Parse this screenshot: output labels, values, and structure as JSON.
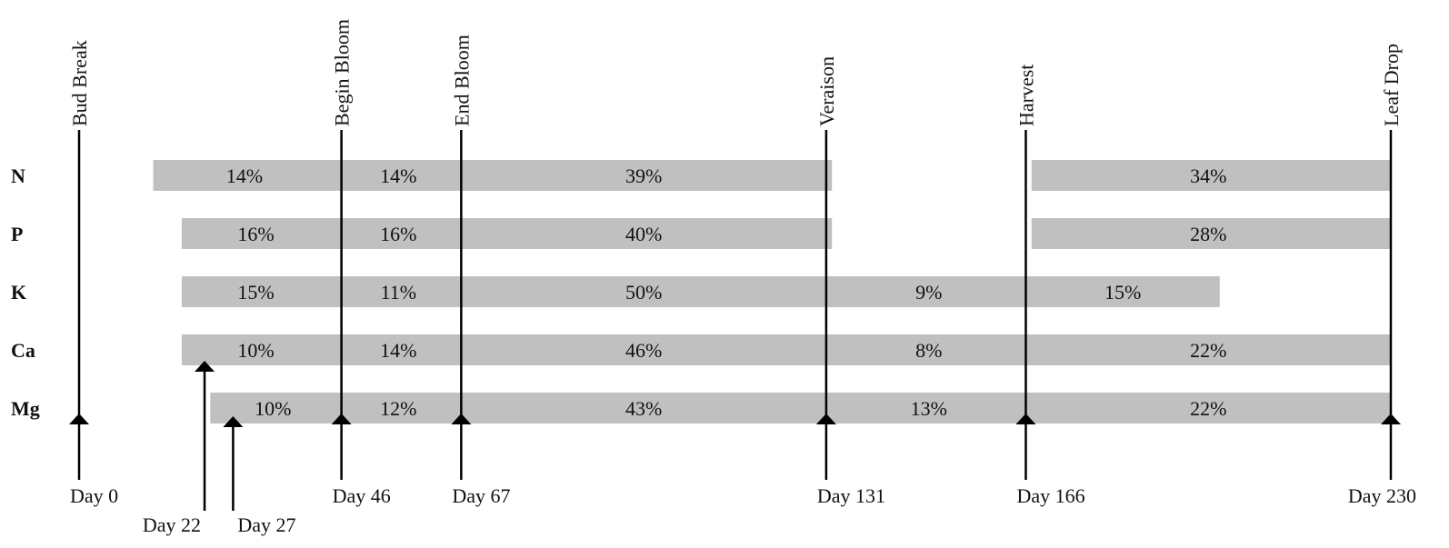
{
  "stages": [
    {
      "name": "Bud Break",
      "day": 0,
      "day_label": "Day 0"
    },
    {
      "name": "Begin Bloom",
      "day": 46,
      "day_label": "Day 46"
    },
    {
      "name": "End Bloom",
      "day": 67,
      "day_label": "Day 67"
    },
    {
      "name": "Veraison",
      "day": 131,
      "day_label": "Day 131"
    },
    {
      "name": "Harvest",
      "day": 166,
      "day_label": "Day 166"
    },
    {
      "name": "Leaf Drop",
      "day": 230,
      "day_label": "Day 230"
    }
  ],
  "extra_days": [
    {
      "day": 22,
      "day_label": "Day 22"
    },
    {
      "day": 27,
      "day_label": "Day 27"
    }
  ],
  "nutrients": [
    {
      "name": "N",
      "bars": [
        {
          "start": 13,
          "end": 132
        },
        {
          "start": 167,
          "end": 230
        }
      ],
      "labels": [
        {
          "text": "14%",
          "at": 29
        },
        {
          "text": "14%",
          "at": 56
        },
        {
          "text": "39%",
          "at": 99
        },
        {
          "text": "34%",
          "at": 198
        }
      ]
    },
    {
      "name": "P",
      "bars": [
        {
          "start": 18,
          "end": 132
        },
        {
          "start": 167,
          "end": 230
        }
      ],
      "labels": [
        {
          "text": "16%",
          "at": 31
        },
        {
          "text": "16%",
          "at": 56
        },
        {
          "text": "40%",
          "at": 99
        },
        {
          "text": "28%",
          "at": 198
        }
      ]
    },
    {
      "name": "K",
      "bars": [
        {
          "start": 18,
          "end": 200
        }
      ],
      "labels": [
        {
          "text": "15%",
          "at": 31
        },
        {
          "text": "11%",
          "at": 56
        },
        {
          "text": "50%",
          "at": 99
        },
        {
          "text": "9%",
          "at": 149
        },
        {
          "text": "15%",
          "at": 183
        }
      ]
    },
    {
      "name": "Ca",
      "bars": [
        {
          "start": 18,
          "end": 230
        }
      ],
      "labels": [
        {
          "text": "10%",
          "at": 31
        },
        {
          "text": "14%",
          "at": 56
        },
        {
          "text": "46%",
          "at": 99
        },
        {
          "text": "8%",
          "at": 149
        },
        {
          "text": "22%",
          "at": 198
        }
      ]
    },
    {
      "name": "Mg",
      "bars": [
        {
          "start": 23,
          "end": 230
        }
      ],
      "labels": [
        {
          "text": "10%",
          "at": 34
        },
        {
          "text": "12%",
          "at": 56
        },
        {
          "text": "43%",
          "at": 99
        },
        {
          "text": "13%",
          "at": 149
        },
        {
          "text": "22%",
          "at": 198
        }
      ]
    }
  ],
  "colors": {
    "bar": "#c0c0c0",
    "line": "#000000",
    "text": "#111111"
  }
}
